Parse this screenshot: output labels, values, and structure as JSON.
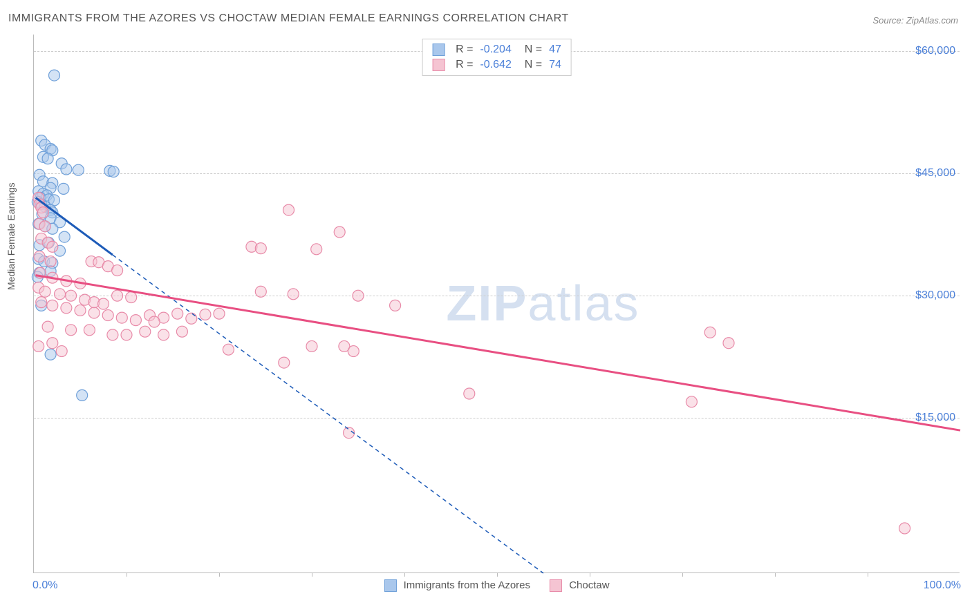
{
  "title": "IMMIGRANTS FROM THE AZORES VS CHOCTAW MEDIAN FEMALE EARNINGS CORRELATION CHART",
  "source": "Source: ZipAtlas.com",
  "y_axis_label": "Median Female Earnings",
  "watermark_bold": "ZIP",
  "watermark_light": "atlas",
  "chart": {
    "type": "scatter",
    "x_min": 0.0,
    "x_max": 100.0,
    "x_min_label": "0.0%",
    "x_max_label": "100.0%",
    "y_min": -4000,
    "y_max": 62000,
    "y_ticks": [
      15000,
      30000,
      45000,
      60000
    ],
    "y_tick_labels": [
      "$15,000",
      "$30,000",
      "$45,000",
      "$60,000"
    ],
    "x_tick_positions": [
      10,
      20,
      30,
      40,
      50,
      60,
      70,
      80,
      90
    ],
    "background_color": "#ffffff",
    "grid_color": "#cccccc",
    "axis_color": "#bbbbbb",
    "tick_label_color": "#4a7fd8",
    "marker_radius": 8,
    "marker_opacity": 0.5,
    "series": [
      {
        "name": "Immigrants from the Azores",
        "color_fill": "#a9c7ec",
        "color_stroke": "#6fa0d9",
        "trend_color": "#1d5bb8",
        "legend_swatch_fill": "#a9c7ec",
        "legend_swatch_stroke": "#6fa0d9",
        "R": "-0.204",
        "N": "47",
        "trend_solid": {
          "x1": 0.2,
          "y1": 42000,
          "x2": 8.5,
          "y2": 35000
        },
        "trend_dash": {
          "x1": 8.5,
          "y1": 35000,
          "x2": 55,
          "y2": -4000
        },
        "points": [
          [
            2.2,
            57000
          ],
          [
            0.8,
            49000
          ],
          [
            1.2,
            48500
          ],
          [
            1.8,
            48000
          ],
          [
            2.0,
            47800
          ],
          [
            1.0,
            47000
          ],
          [
            1.5,
            46800
          ],
          [
            3.0,
            46200
          ],
          [
            3.5,
            45500
          ],
          [
            4.8,
            45400
          ],
          [
            8.2,
            45300
          ],
          [
            8.6,
            45200
          ],
          [
            0.6,
            44800
          ],
          [
            1.0,
            44000
          ],
          [
            2.0,
            43800
          ],
          [
            1.8,
            43200
          ],
          [
            3.2,
            43100
          ],
          [
            0.5,
            42800
          ],
          [
            1.0,
            42500
          ],
          [
            1.4,
            42300
          ],
          [
            0.7,
            42000
          ],
          [
            1.6,
            41800
          ],
          [
            2.2,
            41700
          ],
          [
            0.4,
            41500
          ],
          [
            0.8,
            41200
          ],
          [
            1.2,
            40900
          ],
          [
            1.8,
            40500
          ],
          [
            2.0,
            40200
          ],
          [
            0.9,
            40000
          ],
          [
            1.8,
            39500
          ],
          [
            2.8,
            39000
          ],
          [
            0.5,
            38800
          ],
          [
            1.2,
            38500
          ],
          [
            2.0,
            38200
          ],
          [
            3.3,
            37200
          ],
          [
            0.6,
            36200
          ],
          [
            1.6,
            36500
          ],
          [
            2.8,
            35500
          ],
          [
            0.5,
            34500
          ],
          [
            1.1,
            34200
          ],
          [
            2.0,
            34000
          ],
          [
            1.8,
            33000
          ],
          [
            0.6,
            32800
          ],
          [
            0.4,
            32300
          ],
          [
            0.8,
            28800
          ],
          [
            1.8,
            22800
          ],
          [
            5.2,
            17800
          ]
        ]
      },
      {
        "name": "Choctaw",
        "color_fill": "#f5c4d2",
        "color_stroke": "#e88aa8",
        "trend_color": "#e84f82",
        "legend_swatch_fill": "#f5c4d2",
        "legend_swatch_stroke": "#e88aa8",
        "R": "-0.642",
        "N": "74",
        "trend_solid": {
          "x1": 0.2,
          "y1": 32500,
          "x2": 100,
          "y2": 13500
        },
        "trend_dash": null,
        "points": [
          [
            0.5,
            42000
          ],
          [
            0.6,
            41200
          ],
          [
            0.8,
            40800
          ],
          [
            1.0,
            40200
          ],
          [
            27.5,
            40500
          ],
          [
            0.6,
            38800
          ],
          [
            1.2,
            38500
          ],
          [
            33.0,
            37800
          ],
          [
            0.8,
            37000
          ],
          [
            1.5,
            36500
          ],
          [
            2.0,
            36000
          ],
          [
            23.5,
            36000
          ],
          [
            24.5,
            35800
          ],
          [
            30.5,
            35700
          ],
          [
            0.6,
            34800
          ],
          [
            1.8,
            34200
          ],
          [
            6.2,
            34200
          ],
          [
            7.0,
            34100
          ],
          [
            8.0,
            33600
          ],
          [
            9.0,
            33100
          ],
          [
            0.7,
            32800
          ],
          [
            2.0,
            32200
          ],
          [
            3.5,
            31800
          ],
          [
            5.0,
            31500
          ],
          [
            0.5,
            31000
          ],
          [
            1.2,
            30500
          ],
          [
            2.8,
            30200
          ],
          [
            4.0,
            30000
          ],
          [
            24.5,
            30500
          ],
          [
            28.0,
            30200
          ],
          [
            35.0,
            30000
          ],
          [
            0.8,
            29200
          ],
          [
            2.0,
            28800
          ],
          [
            3.5,
            28500
          ],
          [
            5.0,
            28200
          ],
          [
            6.5,
            27900
          ],
          [
            8.0,
            27600
          ],
          [
            9.5,
            27300
          ],
          [
            11.0,
            27000
          ],
          [
            12.5,
            27600
          ],
          [
            14.0,
            27300
          ],
          [
            15.5,
            27800
          ],
          [
            17.0,
            27200
          ],
          [
            18.5,
            27700
          ],
          [
            20.0,
            27800
          ],
          [
            39.0,
            28800
          ],
          [
            1.5,
            26200
          ],
          [
            4.0,
            25800
          ],
          [
            6.0,
            25800
          ],
          [
            8.5,
            25200
          ],
          [
            10.0,
            25200
          ],
          [
            12.0,
            25600
          ],
          [
            14.0,
            25200
          ],
          [
            16.0,
            25600
          ],
          [
            2.0,
            24200
          ],
          [
            0.5,
            23800
          ],
          [
            3.0,
            23200
          ],
          [
            73.0,
            25500
          ],
          [
            75.0,
            24200
          ],
          [
            30.0,
            23800
          ],
          [
            33.5,
            23800
          ],
          [
            34.5,
            23200
          ],
          [
            21.0,
            23400
          ],
          [
            27.0,
            21800
          ],
          [
            47.0,
            18000
          ],
          [
            71.0,
            17000
          ],
          [
            34.0,
            13200
          ],
          [
            94.0,
            1500
          ],
          [
            5.5,
            29500
          ],
          [
            6.5,
            29200
          ],
          [
            7.5,
            29000
          ],
          [
            9.0,
            30000
          ],
          [
            10.5,
            29800
          ],
          [
            13.0,
            26800
          ]
        ]
      }
    ]
  }
}
